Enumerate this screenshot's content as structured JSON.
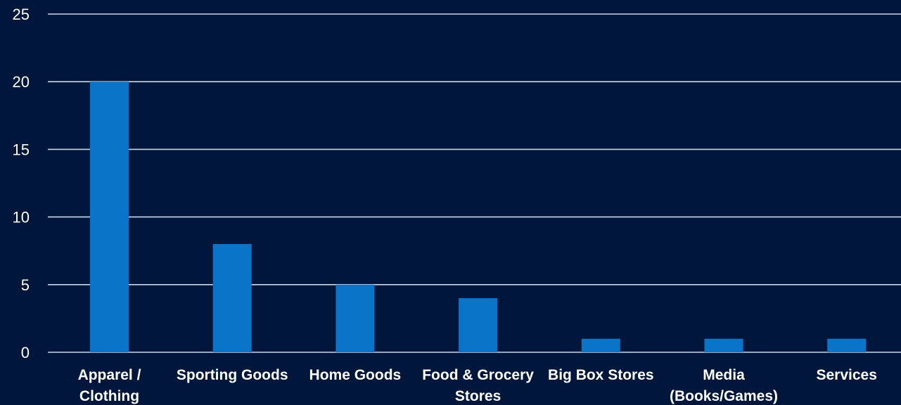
{
  "chart_data": {
    "type": "bar",
    "categories": [
      [
        "Apparel /",
        "Clothing"
      ],
      [
        "Sporting Goods"
      ],
      [
        "Home Goods"
      ],
      [
        "Food & Grocery",
        "Stores"
      ],
      [
        "Big Box Stores"
      ],
      [
        "Media",
        "(Books/Games)"
      ],
      [
        "Services"
      ]
    ],
    "values": [
      20,
      8,
      5,
      4,
      1,
      1,
      1
    ],
    "title": "",
    "xlabel": "",
    "ylabel": "",
    "ylim": [
      0,
      25
    ],
    "yticks": [
      "0",
      "5",
      "10",
      "15",
      "20",
      "25"
    ],
    "grid": true,
    "legend": "none",
    "colors": {
      "background": "#00163a",
      "bar": "#0a74c9",
      "gridline": "#c9d7ee",
      "text": "#ffffff"
    }
  }
}
